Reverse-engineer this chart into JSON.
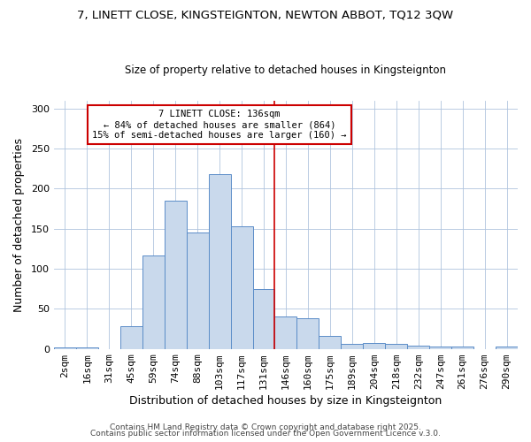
{
  "title1": "7, LINETT CLOSE, KINGSTEIGNTON, NEWTON ABBOT, TQ12 3QW",
  "title2": "Size of property relative to detached houses in Kingsteignton",
  "xlabel": "Distribution of detached houses by size in Kingsteignton",
  "ylabel": "Number of detached properties",
  "categories": [
    "2sqm",
    "16sqm",
    "31sqm",
    "45sqm",
    "59sqm",
    "74sqm",
    "88sqm",
    "103sqm",
    "117sqm",
    "131sqm",
    "146sqm",
    "160sqm",
    "175sqm",
    "189sqm",
    "204sqm",
    "218sqm",
    "232sqm",
    "247sqm",
    "261sqm",
    "276sqm",
    "290sqm"
  ],
  "values": [
    2,
    2,
    0,
    28,
    117,
    185,
    145,
    218,
    153,
    75,
    40,
    38,
    16,
    6,
    7,
    6,
    4,
    3,
    3,
    0,
    3
  ],
  "bar_color": "#c9d9ec",
  "bar_edge_color": "#5b8dc8",
  "vline_x": 9.5,
  "vline_color": "#cc0000",
  "annotation_title": "7 LINETT CLOSE: 136sqm",
  "annotation_line1": "← 84% of detached houses are smaller (864)",
  "annotation_line2": "15% of semi-detached houses are larger (160) →",
  "annotation_box_color": "#cc0000",
  "annotation_fill": "#ffffff",
  "ylim": [
    0,
    310
  ],
  "yticks": [
    0,
    50,
    100,
    150,
    200,
    250,
    300
  ],
  "footer1": "Contains HM Land Registry data © Crown copyright and database right 2025.",
  "footer2": "Contains public sector information licensed under the Open Government Licence v.3.0.",
  "bg_color": "#ffffff",
  "plot_bg_color": "#ffffff",
  "title_fontsize": 9.5,
  "subtitle_fontsize": 8.5,
  "axis_label_fontsize": 9,
  "tick_fontsize": 8,
  "footer_fontsize": 6.5,
  "annotation_fontsize": 7.5
}
